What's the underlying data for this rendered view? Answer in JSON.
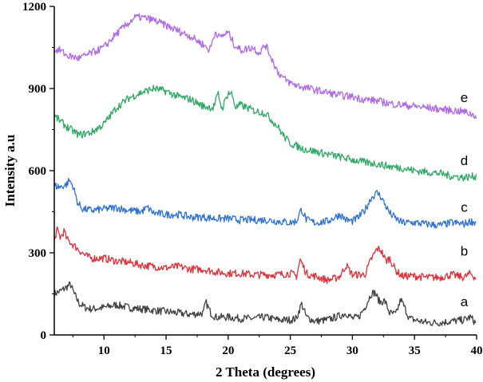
{
  "chart_data": {
    "type": "line",
    "xlabel": "2 Theta (degrees)",
    "ylabel": "Intensity a.u",
    "xlim": [
      6,
      40
    ],
    "ylim": [
      0,
      1200
    ],
    "x_ticks": [
      10,
      15,
      20,
      25,
      30,
      35,
      40
    ],
    "x_tick_labels": [
      "10",
      "15",
      "20",
      "25",
      "30",
      "35",
      "40"
    ],
    "y_ticks": [
      0,
      300,
      600,
      900,
      1200
    ],
    "y_tick_labels": [
      "0",
      "300",
      "600",
      "900",
      "1200"
    ],
    "series": [
      {
        "name": "a",
        "color": "#404040",
        "x": [
          6.0,
          6.5,
          7.0,
          7.3,
          7.6,
          8.0,
          8.5,
          9.0,
          10.0,
          11.0,
          12.0,
          13.0,
          14.0,
          15.0,
          16.0,
          17.0,
          18.0,
          18.2,
          18.6,
          19.0,
          20.0,
          21.0,
          22.0,
          23.0,
          24.0,
          25.0,
          25.5,
          25.9,
          26.3,
          27.0,
          28.0,
          29.0,
          29.5,
          30.0,
          30.5,
          31.0,
          31.5,
          31.8,
          32.2,
          32.6,
          33.0,
          33.5,
          33.9,
          34.2,
          34.6,
          35.0,
          36.0,
          37.0,
          38.0,
          39.0,
          39.5,
          40.0
        ],
        "y": [
          150,
          160,
          175,
          185,
          150,
          115,
          100,
          95,
          100,
          110,
          100,
          95,
          90,
          85,
          80,
          75,
          80,
          120,
          80,
          65,
          65,
          60,
          60,
          65,
          55,
          55,
          60,
          115,
          65,
          50,
          55,
          70,
          80,
          60,
          65,
          100,
          150,
          155,
          120,
          125,
          80,
          75,
          130,
          100,
          60,
          55,
          45,
          45,
          50,
          55,
          65,
          40
        ]
      },
      {
        "name": "b",
        "color": "#e0303a",
        "x": [
          6.0,
          6.2,
          6.5,
          6.8,
          7.0,
          7.5,
          8.0,
          8.5,
          9.0,
          10.0,
          11.0,
          12.0,
          13.0,
          14.0,
          15.0,
          16.0,
          17.0,
          18.0,
          19.0,
          20.0,
          21.0,
          22.0,
          23.0,
          24.0,
          25.0,
          25.5,
          25.8,
          26.0,
          26.3,
          26.8,
          27.0,
          28.0,
          28.5,
          29.0,
          29.5,
          30.0,
          31.0,
          31.5,
          32.0,
          32.3,
          32.7,
          33.0,
          33.5,
          34.0,
          35.0,
          36.0,
          37.0,
          38.0,
          39.0,
          39.5,
          40.0
        ],
        "y": [
          340,
          385,
          355,
          380,
          350,
          330,
          310,
          290,
          280,
          280,
          270,
          265,
          255,
          250,
          245,
          250,
          240,
          240,
          230,
          225,
          225,
          220,
          220,
          220,
          225,
          215,
          275,
          255,
          225,
          215,
          215,
          200,
          205,
          215,
          255,
          220,
          220,
          275,
          315,
          310,
          270,
          280,
          235,
          215,
          215,
          210,
          210,
          220,
          210,
          225,
          205
        ]
      },
      {
        "name": "c",
        "color": "#2f70d6",
        "x": [
          6.0,
          6.5,
          7.0,
          7.2,
          7.5,
          7.9,
          8.3,
          9.0,
          10.0,
          11.0,
          12.0,
          13.0,
          13.5,
          14.0,
          15.0,
          16.0,
          17.0,
          18.0,
          19.0,
          20.0,
          21.0,
          22.0,
          23.0,
          24.0,
          25.0,
          25.5,
          25.9,
          26.3,
          27.0,
          28.0,
          29.0,
          29.5,
          30.0,
          30.5,
          31.0,
          31.5,
          32.0,
          32.3,
          32.7,
          33.0,
          33.5,
          34.0,
          35.0,
          36.0,
          37.0,
          38.0,
          39.0,
          39.5,
          40.0
        ],
        "y": [
          545,
          540,
          550,
          565,
          545,
          480,
          460,
          455,
          460,
          465,
          455,
          450,
          465,
          445,
          440,
          440,
          430,
          430,
          425,
          425,
          420,
          420,
          420,
          415,
          410,
          415,
          460,
          420,
          410,
          415,
          440,
          420,
          415,
          430,
          455,
          500,
          520,
          505,
          470,
          445,
          425,
          410,
          410,
          405,
          400,
          410,
          405,
          415,
          410
        ]
      },
      {
        "name": "d",
        "color": "#2fa866",
        "x": [
          6.0,
          7.0,
          8.0,
          9.0,
          10.0,
          11.0,
          12.0,
          13.0,
          14.0,
          15.0,
          16.0,
          17.0,
          18.0,
          18.8,
          19.2,
          19.5,
          20.0,
          20.3,
          20.6,
          21.0,
          22.0,
          23.0,
          24.0,
          24.5,
          25.0,
          26.0,
          27.0,
          28.0,
          29.0,
          30.0,
          31.0,
          32.0,
          33.0,
          34.0,
          35.0,
          36.0,
          37.0,
          38.0,
          39.0,
          40.0
        ],
        "y": [
          800,
          760,
          730,
          740,
          770,
          830,
          865,
          885,
          900,
          890,
          870,
          860,
          835,
          830,
          880,
          825,
          885,
          880,
          830,
          840,
          820,
          810,
          760,
          725,
          700,
          680,
          670,
          660,
          650,
          640,
          630,
          625,
          615,
          610,
          600,
          595,
          590,
          580,
          575,
          580
        ]
      },
      {
        "name": "e",
        "color": "#b06ae6",
        "x": [
          6.0,
          6.5,
          7.0,
          8.0,
          9.0,
          10.0,
          11.0,
          12.0,
          12.5,
          13.0,
          14.0,
          15.0,
          16.0,
          17.0,
          18.0,
          18.5,
          19.0,
          19.3,
          19.6,
          20.0,
          20.5,
          21.0,
          22.0,
          22.5,
          23.0,
          23.5,
          24.0,
          24.5,
          25.0,
          26.0,
          27.0,
          28.0,
          29.0,
          30.0,
          31.0,
          32.0,
          33.0,
          34.0,
          35.0,
          36.0,
          37.0,
          38.0,
          39.0,
          40.0
        ],
        "y": [
          1040,
          1040,
          1020,
          1010,
          1030,
          1050,
          1100,
          1140,
          1160,
          1160,
          1150,
          1130,
          1110,
          1090,
          1060,
          1040,
          1110,
          1085,
          1095,
          1105,
          1060,
          1040,
          1050,
          1030,
          1060,
          1010,
          960,
          935,
          920,
          905,
          895,
          885,
          875,
          870,
          860,
          855,
          845,
          840,
          835,
          830,
          825,
          820,
          815,
          800
        ]
      }
    ],
    "series_labels": [
      {
        "text": "a",
        "x": 39.0,
        "y": 105
      },
      {
        "text": "b",
        "x": 39.0,
        "y": 290
      },
      {
        "text": "c",
        "x": 39.0,
        "y": 450
      },
      {
        "text": "d",
        "x": 39.0,
        "y": 620
      },
      {
        "text": "e",
        "x": 39.0,
        "y": 850
      }
    ]
  }
}
